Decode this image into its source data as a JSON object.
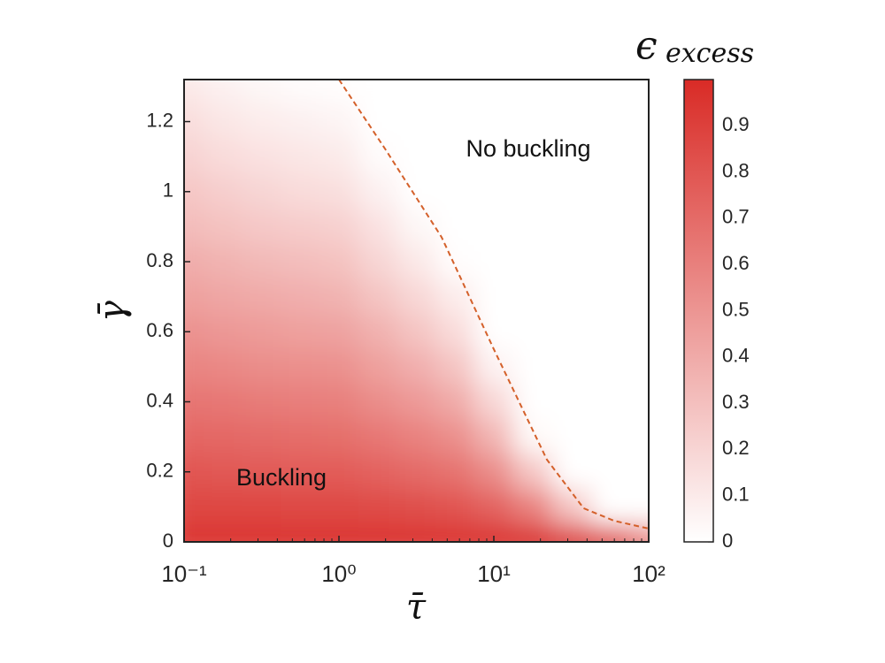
{
  "chart_data": {
    "type": "heatmap",
    "xlabel": "τ̄",
    "ylabel": "γ̄",
    "colorbar_symbol": "ϵ",
    "colorbar_subscript": "excess",
    "annotations": [
      "No buckling",
      "Buckling"
    ],
    "xscale": "log",
    "xlim": [
      0.1,
      100
    ],
    "xticks": [
      {
        "value": 0.1,
        "label": "10⁻¹"
      },
      {
        "value": 1,
        "label": "10⁰"
      },
      {
        "value": 10,
        "label": "10¹"
      },
      {
        "value": 100,
        "label": "10²"
      }
    ],
    "ylim": [
      0,
      1.32
    ],
    "yticks": [
      0,
      0.2,
      0.4,
      0.6,
      0.8,
      1,
      1.2
    ],
    "clim": [
      0,
      1
    ],
    "cticks": [
      0,
      0.1,
      0.2,
      0.3,
      0.4,
      0.5,
      0.6,
      0.7,
      0.8,
      0.9
    ],
    "colormap": [
      "#ffffff",
      "#d92b26"
    ],
    "x": [
      0.1,
      0.178,
      0.316,
      0.562,
      1,
      1.778,
      3.162,
      5.623,
      10,
      17.78,
      31.62,
      56.23,
      100
    ],
    "y": [
      0,
      0.1,
      0.2,
      0.3,
      0.4,
      0.5,
      0.6,
      0.7,
      0.8,
      0.9,
      1.0,
      1.1,
      1.2,
      1.3
    ],
    "z": [
      [
        0.95,
        0.95,
        0.95,
        0.95,
        0.95,
        0.95,
        0.95,
        0.95,
        0.95,
        0.95,
        0.9,
        0.8,
        0.55
      ],
      [
        0.87,
        0.87,
        0.87,
        0.86,
        0.86,
        0.85,
        0.83,
        0.8,
        0.73,
        0.59,
        0.27,
        0,
        0
      ],
      [
        0.8,
        0.79,
        0.78,
        0.77,
        0.77,
        0.74,
        0.7,
        0.66,
        0.54,
        0.27,
        0,
        0,
        0
      ],
      [
        0.72,
        0.71,
        0.7,
        0.69,
        0.68,
        0.64,
        0.59,
        0.53,
        0.35,
        0.03,
        0,
        0,
        0
      ],
      [
        0.65,
        0.64,
        0.62,
        0.61,
        0.6,
        0.54,
        0.48,
        0.4,
        0.19,
        0,
        0,
        0,
        0
      ],
      [
        0.58,
        0.56,
        0.54,
        0.53,
        0.52,
        0.45,
        0.38,
        0.28,
        0.06,
        0,
        0,
        0,
        0
      ],
      [
        0.52,
        0.49,
        0.47,
        0.45,
        0.44,
        0.37,
        0.28,
        0.17,
        0,
        0,
        0,
        0,
        0
      ],
      [
        0.45,
        0.42,
        0.4,
        0.38,
        0.36,
        0.28,
        0.19,
        0.09,
        0,
        0,
        0,
        0,
        0
      ],
      [
        0.39,
        0.36,
        0.33,
        0.31,
        0.29,
        0.2,
        0.11,
        0.01,
        0,
        0,
        0,
        0,
        0
      ],
      [
        0.32,
        0.29,
        0.26,
        0.24,
        0.22,
        0.14,
        0.04,
        0,
        0,
        0,
        0,
        0,
        0
      ],
      [
        0.27,
        0.23,
        0.2,
        0.17,
        0.15,
        0.07,
        0,
        0,
        0,
        0,
        0,
        0,
        0
      ],
      [
        0.21,
        0.17,
        0.14,
        0.12,
        0.1,
        0.02,
        0,
        0,
        0,
        0,
        0,
        0,
        0
      ],
      [
        0.16,
        0.12,
        0.09,
        0.07,
        0.05,
        0,
        0,
        0,
        0,
        0,
        0,
        0,
        0
      ],
      [
        0.11,
        0.07,
        0.04,
        0.02,
        0.01,
        0,
        0,
        0,
        0,
        0,
        0,
        0,
        0
      ]
    ],
    "boundary": {
      "color": "#d4602a",
      "x": [
        1.0,
        2.0,
        4.6,
        10,
        22,
        38,
        60,
        100
      ],
      "y": [
        1.32,
        1.12,
        0.87,
        0.55,
        0.235,
        0.096,
        0.06,
        0.038
      ]
    }
  }
}
